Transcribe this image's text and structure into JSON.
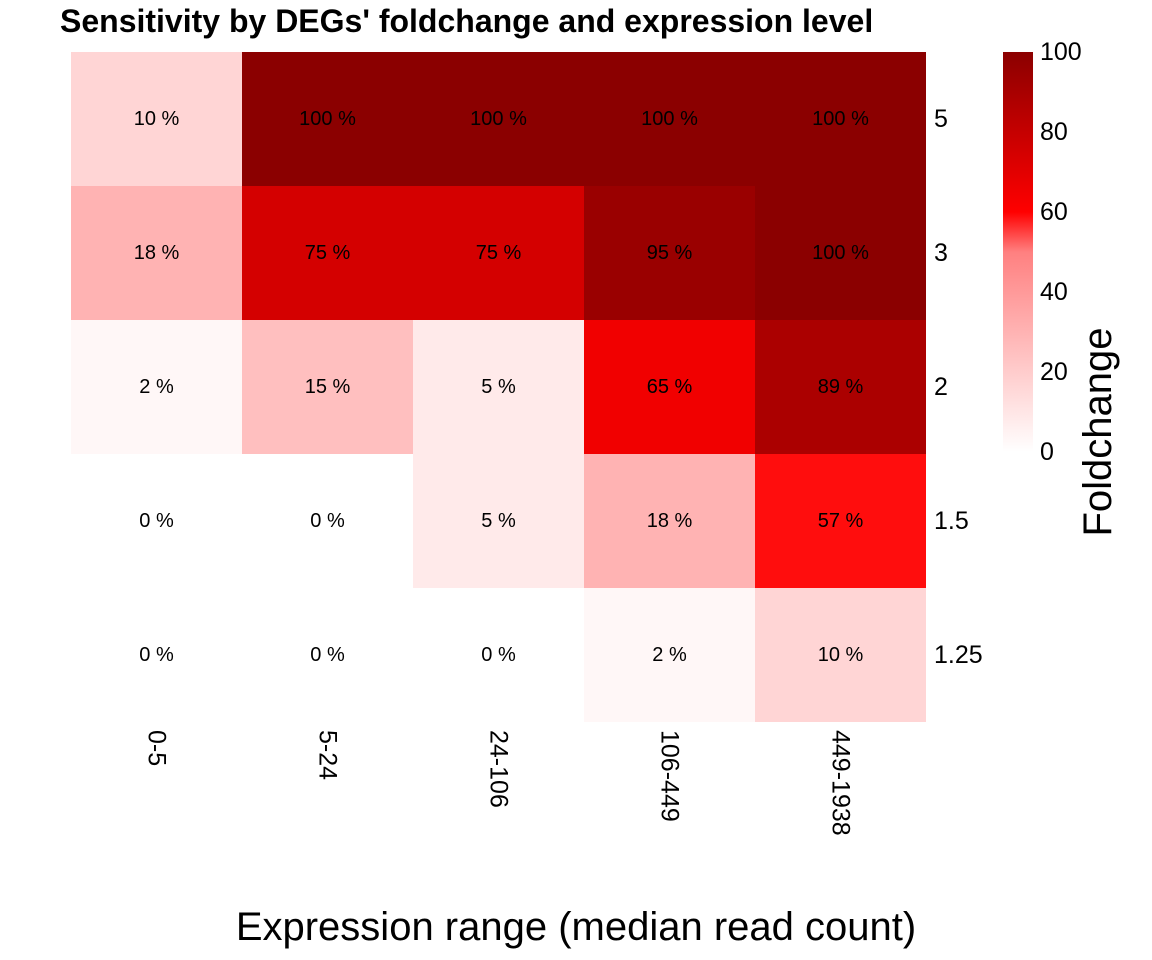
{
  "chart_data": {
    "type": "heatmap",
    "title": "Sensitivity by DEGs' foldchange and expression level",
    "xlabel": "Expression range (median read count)",
    "ylabel": "",
    "x_categories": [
      "0-5",
      "5-24",
      "24-106",
      "106-449",
      "449-1938"
    ],
    "y_categories": [
      "5",
      "3",
      "2",
      "1.5",
      "1.25"
    ],
    "values": [
      [
        10,
        100,
        100,
        100,
        100
      ],
      [
        18,
        75,
        75,
        95,
        100
      ],
      [
        2,
        15,
        5,
        65,
        89
      ],
      [
        0,
        0,
        5,
        18,
        57
      ],
      [
        0,
        0,
        0,
        2,
        10
      ]
    ],
    "labels": [
      [
        "10 %",
        "100 %",
        "100 %",
        "100 %",
        "100 %"
      ],
      [
        "18 %",
        "75 %",
        "75 %",
        "95 %",
        "100 %"
      ],
      [
        "2 %",
        "15 %",
        "5 %",
        "65 %",
        "89 %"
      ],
      [
        "0 %",
        "0 %",
        "5 %",
        "18 %",
        "57 %"
      ],
      [
        "0 %",
        "0 %",
        "0 %",
        "2 %",
        "10 %"
      ]
    ],
    "legend": {
      "title": "Foldchange",
      "min": 0,
      "max": 100,
      "ticks": [
        0,
        20,
        40,
        60,
        80,
        100
      ],
      "colors": {
        "low": "#ffffff",
        "mid": "#ff0000",
        "high": "#8b0000"
      },
      "placement": "right"
    },
    "y_axis_position": "right",
    "x_tick_rotation": "vertical",
    "grid": false
  }
}
